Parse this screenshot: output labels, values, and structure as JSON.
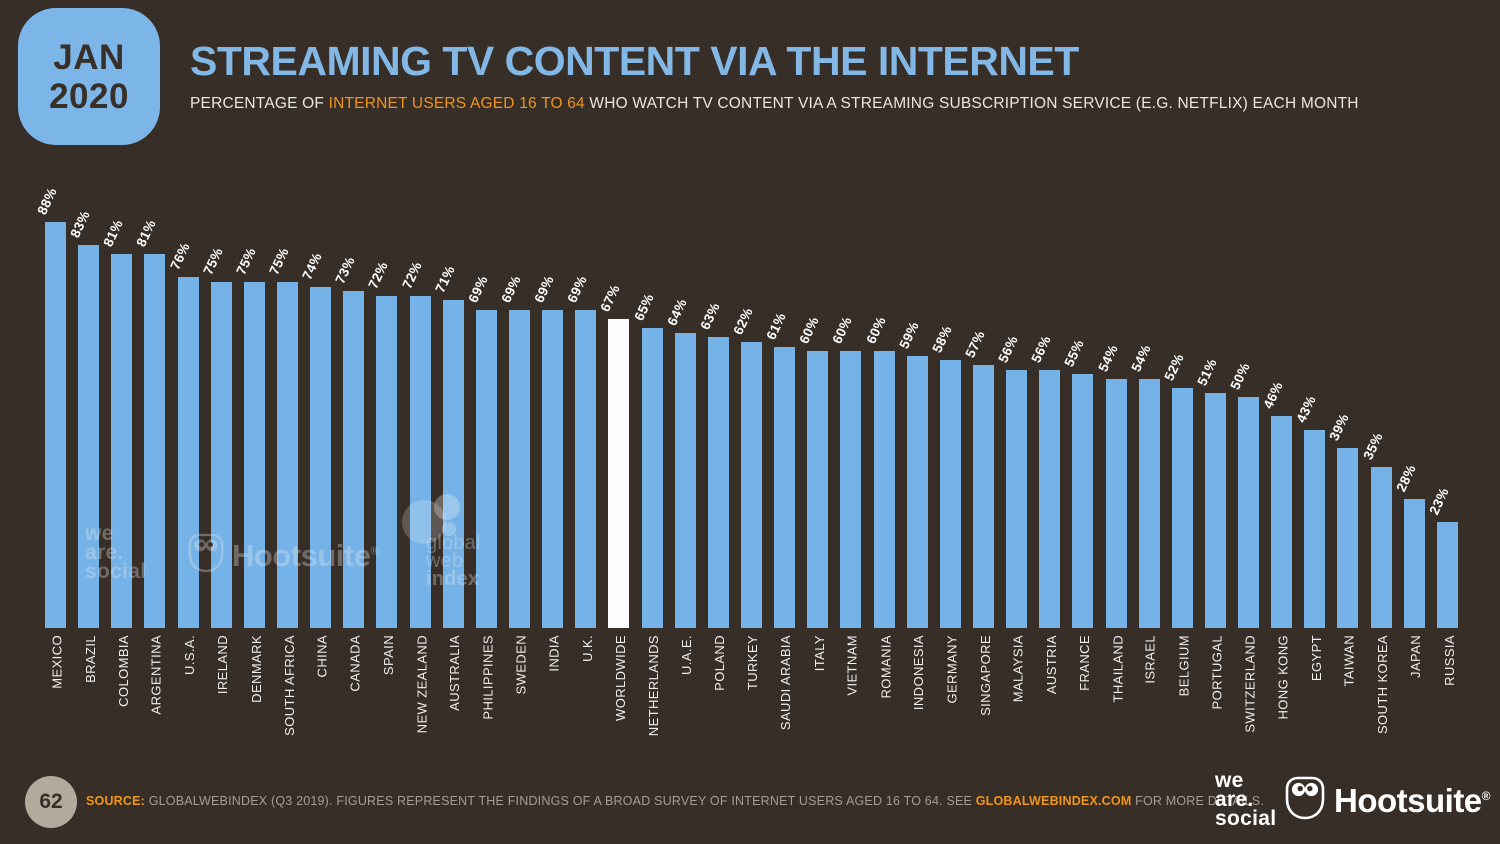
{
  "badge": {
    "month": "JAN",
    "year": "2020"
  },
  "header": {
    "title": "STREAMING TV CONTENT VIA THE INTERNET",
    "subtitle_prefix": "PERCENTAGE OF ",
    "subtitle_highlight": "INTERNET USERS AGED 16 TO 64",
    "subtitle_suffix": " WHO WATCH TV CONTENT VIA A STREAMING SUBSCRIPTION SERVICE (E.G. NETFLIX) EACH MONTH"
  },
  "chart_data": {
    "type": "bar",
    "title": "STREAMING TV CONTENT VIA THE INTERNET",
    "unit": "%",
    "categories": [
      "MEXICO",
      "BRAZIL",
      "COLOMBIA",
      "ARGENTINA",
      "U.S.A.",
      "IRELAND",
      "DENMARK",
      "SOUTH AFRICA",
      "CHINA",
      "CANADA",
      "SPAIN",
      "NEW ZEALAND",
      "AUSTRALIA",
      "PHILIPPINES",
      "SWEDEN",
      "INDIA",
      "U.K.",
      "WORLDWIDE",
      "NETHERLANDS",
      "U.A.E.",
      "POLAND",
      "TURKEY",
      "SAUDI ARABIA",
      "ITALY",
      "VIETNAM",
      "ROMANIA",
      "INDONESIA",
      "GERMANY",
      "SINGAPORE",
      "MALAYSIA",
      "AUSTRIA",
      "FRANCE",
      "THAILAND",
      "ISRAEL",
      "BELGIUM",
      "PORTUGAL",
      "SWITZERLAND",
      "HONG KONG",
      "EGYPT",
      "TAIWAN",
      "SOUTH KOREA",
      "JAPAN",
      "RUSSIA"
    ],
    "values": [
      88,
      83,
      81,
      81,
      76,
      75,
      75,
      75,
      74,
      73,
      72,
      72,
      71,
      69,
      69,
      69,
      69,
      67,
      65,
      64,
      63,
      62,
      61,
      60,
      60,
      60,
      59,
      58,
      57,
      56,
      56,
      55,
      54,
      54,
      52,
      51,
      50,
      46,
      43,
      39,
      35,
      28,
      23
    ],
    "highlight_category": "WORLDWIDE",
    "bar_color": "#75B2E7",
    "highlight_color": "#FCFCFC",
    "ylim": [
      0,
      88
    ],
    "grid": false,
    "legend": "none",
    "value_label_format": "{v}%"
  },
  "watermarks": {
    "wearesocial_line1": "we",
    "wearesocial_line2": "are.",
    "wearesocial_line3": "social",
    "hootsuite": "Hootsuite",
    "hootsuite_reg": "®",
    "gwi_line1": "global",
    "gwi_line2": "web",
    "gwi_line3": "index"
  },
  "footer": {
    "page_number": "62",
    "source_label": "SOURCE:",
    "source_text": " GLOBALWEBINDEX (Q3 2019). FIGURES REPRESENT THE FINDINGS OF A BROAD SURVEY OF INTERNET USERS AGED 16 TO 64. SEE ",
    "source_link": "GLOBALWEBINDEX.COM",
    "source_suffix": " FOR MORE DETAILS.",
    "wearesocial_line1": "we",
    "wearesocial_line2": "are.",
    "wearesocial_line3": "social",
    "hootsuite": "Hootsuite",
    "hootsuite_reg": "®"
  },
  "colors": {
    "background": "#372E28",
    "accent_blue": "#75B2E7",
    "accent_orange": "#F0951D",
    "footer_gray": "#A69D94"
  }
}
